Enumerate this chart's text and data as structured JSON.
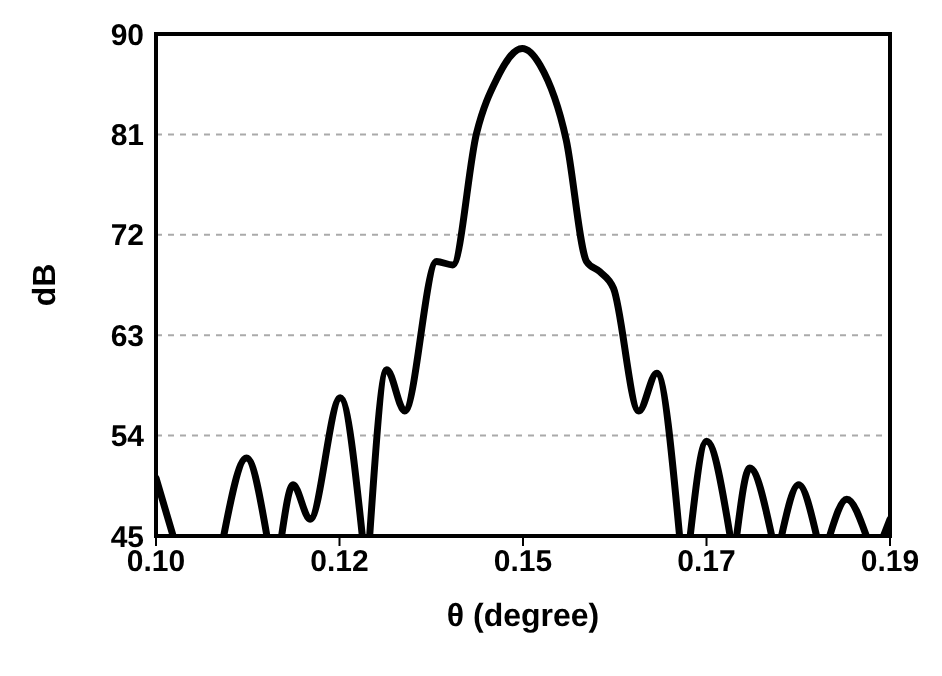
{
  "chart_data": {
    "type": "line",
    "xlabel": "θ (degree)",
    "ylabel": "dB",
    "series": [
      {
        "color": "#000000",
        "x": [
          0.1,
          0.1021
        ],
        "values": [
          50.2,
          45
        ]
      },
      {
        "color": "#000000",
        "x": [
          0.1083,
          0.1111,
          0.1136
        ],
        "values": [
          45,
          52,
          45
        ]
      },
      {
        "color": "#000000",
        "x": [
          0.1154,
          0.1168,
          0.1189,
          0.1226,
          0.1253
        ],
        "values": [
          45,
          49.6,
          46.5,
          57.4,
          45
        ]
      },
      {
        "color": "#000000",
        "x": [
          0.1262,
          0.1283,
          0.1305,
          0.1344,
          0.1364,
          0.1393,
          0.1418,
          0.1449,
          0.1471,
          0.1503,
          0.1528,
          0.1544,
          0.1561,
          0.1592,
          0.1614,
          0.1642
        ],
        "values": [
          45,
          59.9,
          56.2,
          69.6,
          69.3,
          81.1,
          86,
          88.7,
          87.2,
          80.5,
          69.6,
          68.7,
          67.2,
          56.2,
          59.6,
          45
        ]
      },
      {
        "color": "#000000",
        "x": [
          0.1655,
          0.1675,
          0.1704
        ],
        "values": [
          45,
          53.5,
          45
        ]
      },
      {
        "color": "#000000",
        "x": [
          0.1712,
          0.1728,
          0.1755
        ],
        "values": [
          45,
          51.1,
          45
        ]
      },
      {
        "color": "#000000",
        "x": [
          0.1767,
          0.1788,
          0.181
        ],
        "values": [
          45,
          49.6,
          45
        ]
      },
      {
        "color": "#000000",
        "x": [
          0.1826,
          0.1847,
          0.1871
        ],
        "values": [
          45,
          48.3,
          45
        ]
      },
      {
        "color": "#000000",
        "x": [
          0.1892,
          0.19
        ],
        "values": [
          45,
          46.5
        ]
      }
    ],
    "xlim": [
      0.1,
      0.19
    ],
    "xticks": [
      {
        "value": 0.1,
        "label": "0.10"
      },
      {
        "value": 0.1225,
        "label": "0.12"
      },
      {
        "value": 0.145,
        "label": "0.15"
      },
      {
        "value": 0.1675,
        "label": "0.17"
      },
      {
        "value": 0.19,
        "label": "0.19"
      }
    ],
    "ylim": [
      45,
      90
    ],
    "yticks": [
      45,
      54,
      63,
      72,
      81,
      90
    ],
    "grid": "y",
    "marker": "none",
    "line_style": "solid"
  }
}
